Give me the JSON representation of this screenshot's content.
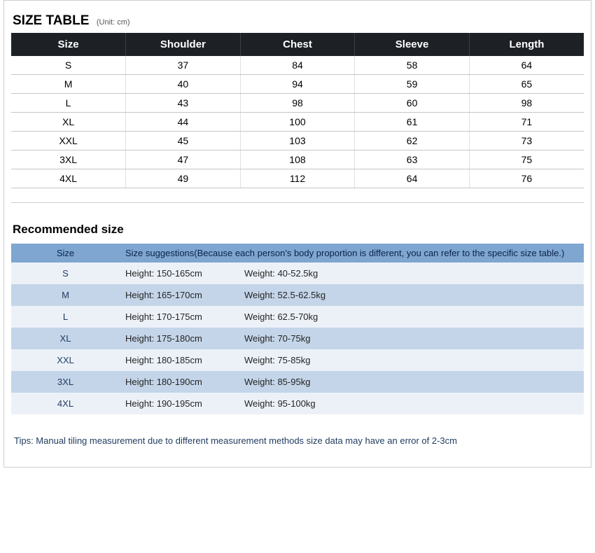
{
  "title": {
    "main": "SIZE TABLE",
    "unit": "(Unit: cm)"
  },
  "size_table": {
    "columns": [
      "Size",
      "Shoulder",
      "Chest",
      "Sleeve",
      "Length"
    ],
    "rows": [
      [
        "S",
        "37",
        "84",
        "58",
        "64"
      ],
      [
        "M",
        "40",
        "94",
        "59",
        "65"
      ],
      [
        "L",
        "43",
        "98",
        "60",
        "98"
      ],
      [
        "XL",
        "44",
        "100",
        "61",
        "71"
      ],
      [
        "XXL",
        "45",
        "103",
        "62",
        "73"
      ],
      [
        "3XL",
        "47",
        "108",
        "63",
        "75"
      ],
      [
        "4XL",
        "49",
        "112",
        "64",
        "76"
      ]
    ],
    "header_bg": "#1d2126",
    "header_fg": "#ffffff",
    "border_color": "#c6c6c6"
  },
  "recommended": {
    "title": "Recommended size",
    "header": {
      "size_label": "Size",
      "suggestion_text": "Size suggestions(Because each person's body proportion is different, you can refer to the specific size table.)"
    },
    "header_bg": "#7ea6d0",
    "row_even_bg": "#c4d5e9",
    "row_odd_bg": "#ecf1f8",
    "rows": [
      {
        "size": "S",
        "height": "Height: 150-165cm",
        "weight": "Weight: 40-52.5kg"
      },
      {
        "size": "M",
        "height": "Height: 165-170cm",
        "weight": "Weight: 52.5-62.5kg"
      },
      {
        "size": "L",
        "height": "Height: 170-175cm",
        "weight": "Weight: 62.5-70kg"
      },
      {
        "size": "XL",
        "height": "Height: 175-180cm",
        "weight": "Weight: 70-75kg"
      },
      {
        "size": "XXL",
        "height": "Height: 180-185cm",
        "weight": "Weight: 75-85kg"
      },
      {
        "size": "3XL",
        "height": "Height: 180-190cm",
        "weight": "Weight: 85-95kg"
      },
      {
        "size": "4XL",
        "height": "Height: 190-195cm",
        "weight": "Weight: 95-100kg"
      }
    ]
  },
  "tips": "Tips: Manual tiling measurement due to different measurement methods size data may have an error of 2-3cm"
}
